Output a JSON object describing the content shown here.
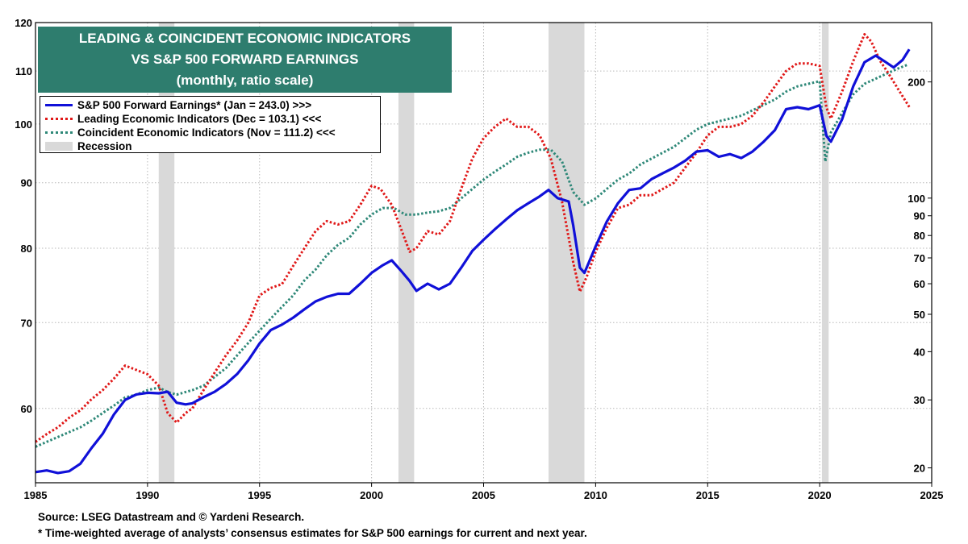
{
  "chart_data": {
    "type": "line",
    "title": [
      "LEADING & COINCIDENT ECONOMIC  INDICATORS",
      "VS S&P 500 FORWARD EARNINGS",
      "(monthly, ratio scale)"
    ],
    "x_ticks": [
      "1985",
      "1990",
      "1995",
      "2000",
      "2005",
      "2010",
      "2015",
      "2020",
      "2025"
    ],
    "xlim": [
      1985,
      2025
    ],
    "left_axis": {
      "scale": "log",
      "ylim": [
        52.5,
        120
      ],
      "ticks": [
        "60",
        "70",
        "80",
        "90",
        "100",
        "110",
        "120"
      ]
    },
    "right_axis": {
      "scale": "log",
      "ylim": [
        18.3,
        285
      ],
      "ticks": [
        "20",
        "30",
        "40",
        "50",
        "60",
        "70",
        "80",
        "90",
        "100",
        "200"
      ]
    },
    "grid": true,
    "legend_position": "top-left",
    "recessions": [
      [
        1990.5,
        1991.2
      ],
      [
        2001.2,
        2001.9
      ],
      [
        2007.9,
        2009.5
      ],
      [
        2020.1,
        2020.4
      ]
    ],
    "series": [
      {
        "name": "S&P 500 Forward Earnings*  (Jan = 243.0) >>>",
        "axis": "right",
        "color": "#1010d8",
        "style": "solid",
        "points": [
          [
            1985.0,
            19.5
          ],
          [
            1985.5,
            19.7
          ],
          [
            1986.0,
            19.4
          ],
          [
            1986.5,
            19.6
          ],
          [
            1987.0,
            20.5
          ],
          [
            1987.5,
            22.5
          ],
          [
            1988.0,
            24.5
          ],
          [
            1988.5,
            27.5
          ],
          [
            1989.0,
            30.0
          ],
          [
            1989.5,
            31.0
          ],
          [
            1990.0,
            31.3
          ],
          [
            1990.5,
            31.2
          ],
          [
            1990.9,
            31.5
          ],
          [
            1991.3,
            29.5
          ],
          [
            1991.7,
            29.2
          ],
          [
            1992.0,
            29.4
          ],
          [
            1992.5,
            30.5
          ],
          [
            1993.0,
            31.5
          ],
          [
            1993.5,
            33.0
          ],
          [
            1994.0,
            35.0
          ],
          [
            1994.5,
            38.0
          ],
          [
            1995.0,
            42.0
          ],
          [
            1995.5,
            45.5
          ],
          [
            1996.0,
            47.0
          ],
          [
            1996.5,
            49.0
          ],
          [
            1997.0,
            51.5
          ],
          [
            1997.5,
            54.0
          ],
          [
            1998.0,
            55.5
          ],
          [
            1998.5,
            56.5
          ],
          [
            1999.0,
            56.5
          ],
          [
            1999.5,
            60.0
          ],
          [
            2000.0,
            64.0
          ],
          [
            2000.5,
            67.0
          ],
          [
            2000.9,
            69.0
          ],
          [
            2001.3,
            65.0
          ],
          [
            2001.7,
            61.0
          ],
          [
            2002.0,
            57.5
          ],
          [
            2002.5,
            60.0
          ],
          [
            2003.0,
            58.0
          ],
          [
            2003.5,
            60.0
          ],
          [
            2004.0,
            66.0
          ],
          [
            2004.5,
            73.0
          ],
          [
            2005.0,
            78.0
          ],
          [
            2005.5,
            83.0
          ],
          [
            2006.0,
            88.0
          ],
          [
            2006.5,
            93.0
          ],
          [
            2007.0,
            97.0
          ],
          [
            2007.5,
            101.0
          ],
          [
            2007.9,
            105.0
          ],
          [
            2008.3,
            100.0
          ],
          [
            2008.8,
            98.0
          ],
          [
            2009.0,
            85.0
          ],
          [
            2009.3,
            66.0
          ],
          [
            2009.5,
            64.0
          ],
          [
            2010.0,
            75.0
          ],
          [
            2010.5,
            87.0
          ],
          [
            2011.0,
            97.0
          ],
          [
            2011.5,
            105.0
          ],
          [
            2012.0,
            106.0
          ],
          [
            2012.5,
            112.0
          ],
          [
            2013.0,
            116.0
          ],
          [
            2013.5,
            120.0
          ],
          [
            2014.0,
            125.0
          ],
          [
            2014.5,
            132.0
          ],
          [
            2015.0,
            133.0
          ],
          [
            2015.5,
            128.0
          ],
          [
            2016.0,
            130.0
          ],
          [
            2016.5,
            127.0
          ],
          [
            2017.0,
            132.0
          ],
          [
            2017.5,
            140.0
          ],
          [
            2018.0,
            150.0
          ],
          [
            2018.5,
            170.0
          ],
          [
            2019.0,
            172.0
          ],
          [
            2019.5,
            170.0
          ],
          [
            2020.0,
            174.0
          ],
          [
            2020.3,
            145.0
          ],
          [
            2020.5,
            140.0
          ],
          [
            2021.0,
            160.0
          ],
          [
            2021.5,
            195.0
          ],
          [
            2022.0,
            225.0
          ],
          [
            2022.5,
            234.0
          ],
          [
            2022.9,
            226.0
          ],
          [
            2023.3,
            218.0
          ],
          [
            2023.7,
            228.0
          ],
          [
            2024.0,
            243.0
          ]
        ]
      },
      {
        "name": "Leading Economic Indicators (Dec = 103.1) <<<",
        "axis": "left",
        "color": "#e01818",
        "style": "dotted",
        "points": [
          [
            1985.0,
            56.5
          ],
          [
            1985.5,
            57.3
          ],
          [
            1986.0,
            58.0
          ],
          [
            1986.5,
            59.0
          ],
          [
            1987.0,
            59.8
          ],
          [
            1987.5,
            61.0
          ],
          [
            1988.0,
            62.0
          ],
          [
            1988.5,
            63.3
          ],
          [
            1989.0,
            64.8
          ],
          [
            1989.5,
            64.3
          ],
          [
            1990.0,
            63.8
          ],
          [
            1990.5,
            62.5
          ],
          [
            1990.9,
            59.5
          ],
          [
            1991.3,
            58.5
          ],
          [
            1991.7,
            59.5
          ],
          [
            1992.0,
            60.0
          ],
          [
            1992.5,
            62.0
          ],
          [
            1993.0,
            64.0
          ],
          [
            1993.5,
            66.0
          ],
          [
            1994.0,
            67.8
          ],
          [
            1994.5,
            70.0
          ],
          [
            1995.0,
            73.5
          ],
          [
            1995.5,
            74.5
          ],
          [
            1996.0,
            75.0
          ],
          [
            1996.5,
            77.5
          ],
          [
            1997.0,
            80.0
          ],
          [
            1997.5,
            82.5
          ],
          [
            1998.0,
            84.0
          ],
          [
            1998.5,
            83.5
          ],
          [
            1999.0,
            84.0
          ],
          [
            1999.5,
            86.5
          ],
          [
            2000.0,
            89.5
          ],
          [
            2000.4,
            89.0
          ],
          [
            2000.9,
            86.5
          ],
          [
            2001.3,
            83.0
          ],
          [
            2001.7,
            79.5
          ],
          [
            2002.0,
            80.0
          ],
          [
            2002.5,
            82.5
          ],
          [
            2003.0,
            82.0
          ],
          [
            2003.5,
            84.0
          ],
          [
            2004.0,
            89.0
          ],
          [
            2004.5,
            94.0
          ],
          [
            2005.0,
            97.5
          ],
          [
            2005.5,
            99.5
          ],
          [
            2006.0,
            101.0
          ],
          [
            2006.5,
            99.5
          ],
          [
            2007.0,
            99.5
          ],
          [
            2007.5,
            98.0
          ],
          [
            2008.0,
            94.0
          ],
          [
            2008.5,
            87.0
          ],
          [
            2009.0,
            78.0
          ],
          [
            2009.3,
            74.0
          ],
          [
            2009.6,
            76.0
          ],
          [
            2010.0,
            79.5
          ],
          [
            2010.5,
            83.0
          ],
          [
            2011.0,
            86.0
          ],
          [
            2011.5,
            86.5
          ],
          [
            2012.0,
            88.0
          ],
          [
            2012.5,
            88.0
          ],
          [
            2013.0,
            89.0
          ],
          [
            2013.5,
            90.0
          ],
          [
            2014.0,
            92.5
          ],
          [
            2014.5,
            95.0
          ],
          [
            2015.0,
            98.0
          ],
          [
            2015.5,
            99.5
          ],
          [
            2016.0,
            99.5
          ],
          [
            2016.5,
            100.0
          ],
          [
            2017.0,
            101.5
          ],
          [
            2017.5,
            104.0
          ],
          [
            2018.0,
            107.0
          ],
          [
            2018.5,
            110.0
          ],
          [
            2019.0,
            111.5
          ],
          [
            2019.5,
            111.5
          ],
          [
            2020.0,
            111.0
          ],
          [
            2020.3,
            103.0
          ],
          [
            2020.5,
            101.0
          ],
          [
            2021.0,
            106.0
          ],
          [
            2021.5,
            112.0
          ],
          [
            2022.0,
            117.5
          ],
          [
            2022.3,
            116.0
          ],
          [
            2022.7,
            112.0
          ],
          [
            2023.0,
            110.0
          ],
          [
            2023.5,
            106.5
          ],
          [
            2024.0,
            103.1
          ]
        ]
      },
      {
        "name": "Coincident Economic Indicators (Nov = 111.2) <<<",
        "axis": "left",
        "color": "#2e8878",
        "style": "dotted",
        "points": [
          [
            1985.0,
            56.0
          ],
          [
            1985.5,
            56.5
          ],
          [
            1986.0,
            57.0
          ],
          [
            1986.5,
            57.5
          ],
          [
            1987.0,
            58.0
          ],
          [
            1987.5,
            58.7
          ],
          [
            1988.0,
            59.5
          ],
          [
            1988.5,
            60.3
          ],
          [
            1989.0,
            61.2
          ],
          [
            1989.5,
            61.5
          ],
          [
            1990.0,
            62.0
          ],
          [
            1990.5,
            62.3
          ],
          [
            1990.9,
            61.8
          ],
          [
            1991.3,
            61.5
          ],
          [
            1991.7,
            61.8
          ],
          [
            1992.0,
            62.0
          ],
          [
            1992.5,
            62.5
          ],
          [
            1993.0,
            63.5
          ],
          [
            1993.5,
            64.5
          ],
          [
            1994.0,
            66.0
          ],
          [
            1994.5,
            67.5
          ],
          [
            1995.0,
            69.0
          ],
          [
            1995.5,
            70.5
          ],
          [
            1996.0,
            72.0
          ],
          [
            1996.5,
            73.5
          ],
          [
            1997.0,
            75.5
          ],
          [
            1997.5,
            77.0
          ],
          [
            1998.0,
            79.0
          ],
          [
            1998.5,
            80.5
          ],
          [
            1999.0,
            81.5
          ],
          [
            1999.5,
            83.5
          ],
          [
            2000.0,
            85.0
          ],
          [
            2000.5,
            86.0
          ],
          [
            2001.0,
            86.0
          ],
          [
            2001.5,
            85.0
          ],
          [
            2002.0,
            85.0
          ],
          [
            2002.5,
            85.3
          ],
          [
            2003.0,
            85.5
          ],
          [
            2003.5,
            86.0
          ],
          [
            2004.0,
            87.5
          ],
          [
            2004.5,
            89.0
          ],
          [
            2005.0,
            90.5
          ],
          [
            2005.5,
            91.8
          ],
          [
            2006.0,
            93.0
          ],
          [
            2006.5,
            94.3
          ],
          [
            2007.0,
            95.0
          ],
          [
            2007.5,
            95.5
          ],
          [
            2008.0,
            95.5
          ],
          [
            2008.5,
            93.5
          ],
          [
            2009.0,
            88.5
          ],
          [
            2009.5,
            86.5
          ],
          [
            2010.0,
            87.5
          ],
          [
            2010.5,
            89.0
          ],
          [
            2011.0,
            90.5
          ],
          [
            2011.5,
            91.5
          ],
          [
            2012.0,
            93.0
          ],
          [
            2012.5,
            94.0
          ],
          [
            2013.0,
            95.0
          ],
          [
            2013.5,
            96.0
          ],
          [
            2014.0,
            97.5
          ],
          [
            2014.5,
            99.0
          ],
          [
            2015.0,
            100.0
          ],
          [
            2015.5,
            100.5
          ],
          [
            2016.0,
            101.0
          ],
          [
            2016.5,
            101.5
          ],
          [
            2017.0,
            102.5
          ],
          [
            2017.5,
            103.5
          ],
          [
            2018.0,
            104.5
          ],
          [
            2018.5,
            106.0
          ],
          [
            2019.0,
            107.0
          ],
          [
            2019.5,
            107.5
          ],
          [
            2020.0,
            108.0
          ],
          [
            2020.25,
            93.5
          ],
          [
            2020.5,
            98.5
          ],
          [
            2021.0,
            102.0
          ],
          [
            2021.5,
            105.5
          ],
          [
            2022.0,
            107.5
          ],
          [
            2022.5,
            108.5
          ],
          [
            2023.0,
            109.5
          ],
          [
            2023.5,
            110.5
          ],
          [
            2023.9,
            111.2
          ]
        ]
      }
    ],
    "recession_label": "Recession"
  },
  "footer": {
    "source": "Source: LSEG Datastream and © Yardeni Research.",
    "note": "* Time-weighted average of analysts’ consensus estimates for S&P 500 earnings for current and next year."
  }
}
